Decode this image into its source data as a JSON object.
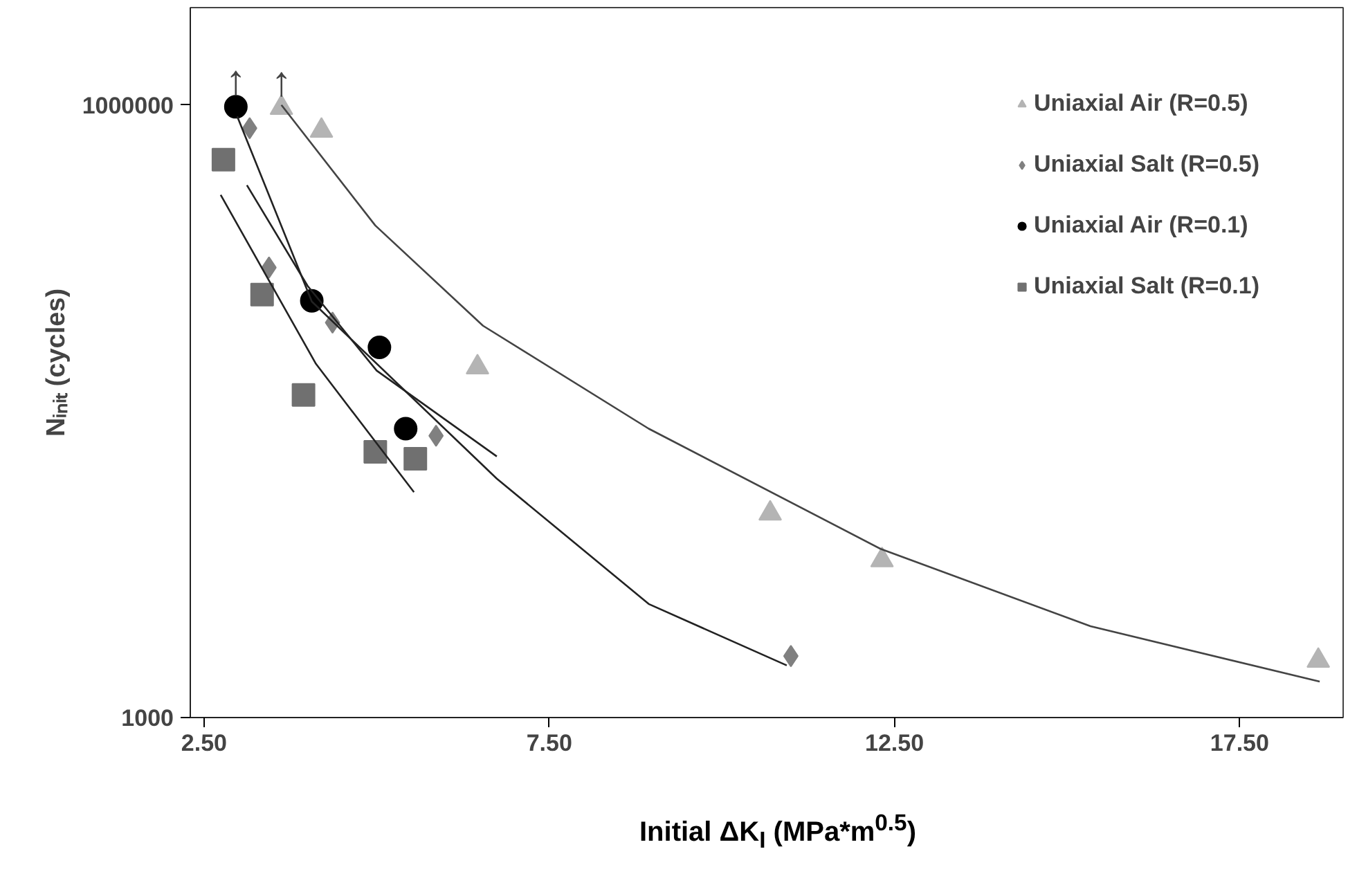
{
  "chart_data": {
    "type": "scatter",
    "xlabel": "Initial ΔK$_{I}$ (MPa*m$^{0.5}$)",
    "ylabel": "Nᵢₙᵢₜ (cycles)",
    "xlim": [
      2.3,
      19.0
    ],
    "xticks": [
      {
        "value": 2.5,
        "label": "2.50"
      },
      {
        "value": 7.5,
        "label": "7.50"
      },
      {
        "value": 12.5,
        "label": "12.50"
      },
      {
        "value": 17.5,
        "label": "17.50"
      }
    ],
    "ylim": [
      1000,
      3000000
    ],
    "yticks": [
      1000,
      1000000
    ],
    "log": "y",
    "grid": false,
    "legend": "top right",
    "series": [
      {
        "name": "Uniaxial Air (R=0.5)",
        "color": "#b4b4b4",
        "marker": "triangle",
        "x": [
          3.62,
          4.2,
          6.46,
          10.7,
          12.32,
          18.64
        ],
        "values": [
          970000,
          750000,
          52000,
          10000,
          5900,
          1900
        ]
      },
      {
        "name": "Uniaxial Salt (R=0.5)",
        "color": "#808080",
        "marker": "diamond",
        "x": [
          3.16,
          3.44,
          4.36,
          5.86,
          11.0
        ],
        "values": [
          770000,
          160000,
          86000,
          24000,
          2000
        ]
      },
      {
        "name": "Uniaxial Air (R=0.1)",
        "color": "#000000",
        "marker": "circle",
        "x": [
          2.96,
          4.06,
          5.04,
          5.42
        ],
        "values": [
          980000,
          110000,
          65000,
          26000
        ]
      },
      {
        "name": "Uniaxial Salt (R=0.1)",
        "color": "#707070",
        "marker": "square",
        "x": [
          2.78,
          3.34,
          3.94,
          4.98,
          5.56
        ],
        "values": [
          540000,
          118000,
          38000,
          20000,
          18500
        ]
      },
      {
        "type": "line",
        "color": "#444444",
        "x": [
          3.62,
          4.98,
          6.54,
          8.94,
          12.3,
          15.34,
          18.66
        ],
        "values": [
          1000000,
          257000,
          83000,
          26000,
          6700,
          2800,
          1500
        ]
      },
      {
        "type": "line",
        "color": "#222222",
        "x": [
          2.98,
          4.06,
          6.74,
          8.94,
          10.94
        ],
        "values": [
          880000,
          109000,
          14800,
          3600,
          1800
        ]
      },
      {
        "type": "line",
        "color": "#222222",
        "x": [
          3.12,
          4.0,
          5.0,
          6.74
        ],
        "values": [
          405000,
          130000,
          50000,
          19000
        ]
      },
      {
        "type": "line",
        "color": "#222222",
        "x": [
          2.74,
          4.12,
          5.54
        ],
        "values": [
          363000,
          54000,
          12700
        ]
      }
    ],
    "annotations": [
      {
        "text": "↑",
        "x": 2.96,
        "y": 980000
      },
      {
        "text": "↑",
        "x": 3.62,
        "y": 970000
      }
    ]
  }
}
